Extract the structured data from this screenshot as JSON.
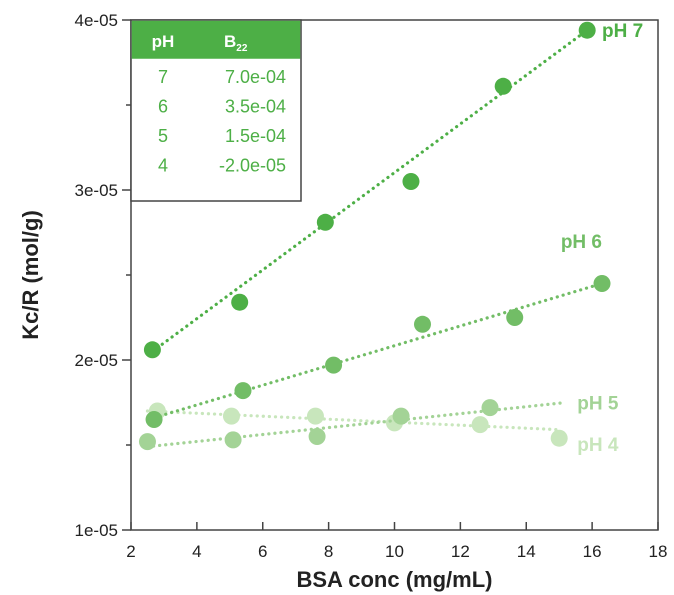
{
  "chart_data": {
    "type": "scatter",
    "xlabel": "BSA conc (mg/mL)",
    "ylabel": "Kc/R (mol/g)",
    "xlim": [
      2,
      18
    ],
    "ylim": [
      1e-05,
      4e-05
    ],
    "x_ticks": [
      "2",
      "4",
      "6",
      "8",
      "10",
      "12",
      "14",
      "16",
      "18"
    ],
    "y_ticks": [
      "1e-05",
      "2e-05",
      "3e-05",
      "4e-05"
    ],
    "grid": false,
    "series": [
      {
        "name": "pH 7",
        "color": "#4daf46",
        "points": [
          [
            2.65,
            2.06e-05
          ],
          [
            5.3,
            2.34e-05
          ],
          [
            7.9,
            2.81e-05
          ],
          [
            10.5,
            3.05e-05
          ],
          [
            13.3,
            3.61e-05
          ],
          [
            15.85,
            3.94e-05
          ]
        ],
        "fit": [
          [
            2.65,
            2.05e-05
          ],
          [
            15.85,
            3.94e-05
          ]
        ]
      },
      {
        "name": "pH 6",
        "color": "#72bd66",
        "points": [
          [
            2.7,
            1.65e-05
          ],
          [
            5.4,
            1.82e-05
          ],
          [
            8.15,
            1.97e-05
          ],
          [
            10.85,
            2.21e-05
          ],
          [
            13.65,
            2.25e-05
          ],
          [
            16.3,
            2.45e-05
          ]
        ],
        "fit": [
          [
            2.7,
            1.66e-05
          ],
          [
            16.3,
            2.45e-05
          ]
        ]
      },
      {
        "name": "pH 5",
        "color": "#a3d396",
        "points": [
          [
            2.5,
            1.52e-05
          ],
          [
            5.1,
            1.53e-05
          ],
          [
            7.65,
            1.55e-05
          ],
          [
            10.2,
            1.67e-05
          ],
          [
            12.9,
            1.72e-05
          ]
        ],
        "fit": [
          [
            2.5,
            1.49e-05
          ],
          [
            15.2,
            1.75e-05
          ]
        ]
      },
      {
        "name": "pH 4",
        "color": "#c8e6bc",
        "points": [
          [
            2.8,
            1.7e-05
          ],
          [
            5.05,
            1.67e-05
          ],
          [
            7.6,
            1.67e-05
          ],
          [
            10.0,
            1.63e-05
          ],
          [
            12.6,
            1.62e-05
          ],
          [
            15.0,
            1.54e-05
          ]
        ],
        "fit": [
          [
            2.5,
            1.7e-05
          ],
          [
            15.0,
            1.59e-05
          ]
        ]
      }
    ],
    "table": {
      "headers": [
        "pH",
        "B",
        "22"
      ],
      "rows": [
        [
          "7",
          "7.0e-04"
        ],
        [
          "6",
          "3.5e-04"
        ],
        [
          "5",
          "1.5e-04"
        ],
        [
          "4",
          "-2.0e-05"
        ]
      ],
      "header_color": "#4daf46",
      "text_color": "#4daf46"
    }
  }
}
